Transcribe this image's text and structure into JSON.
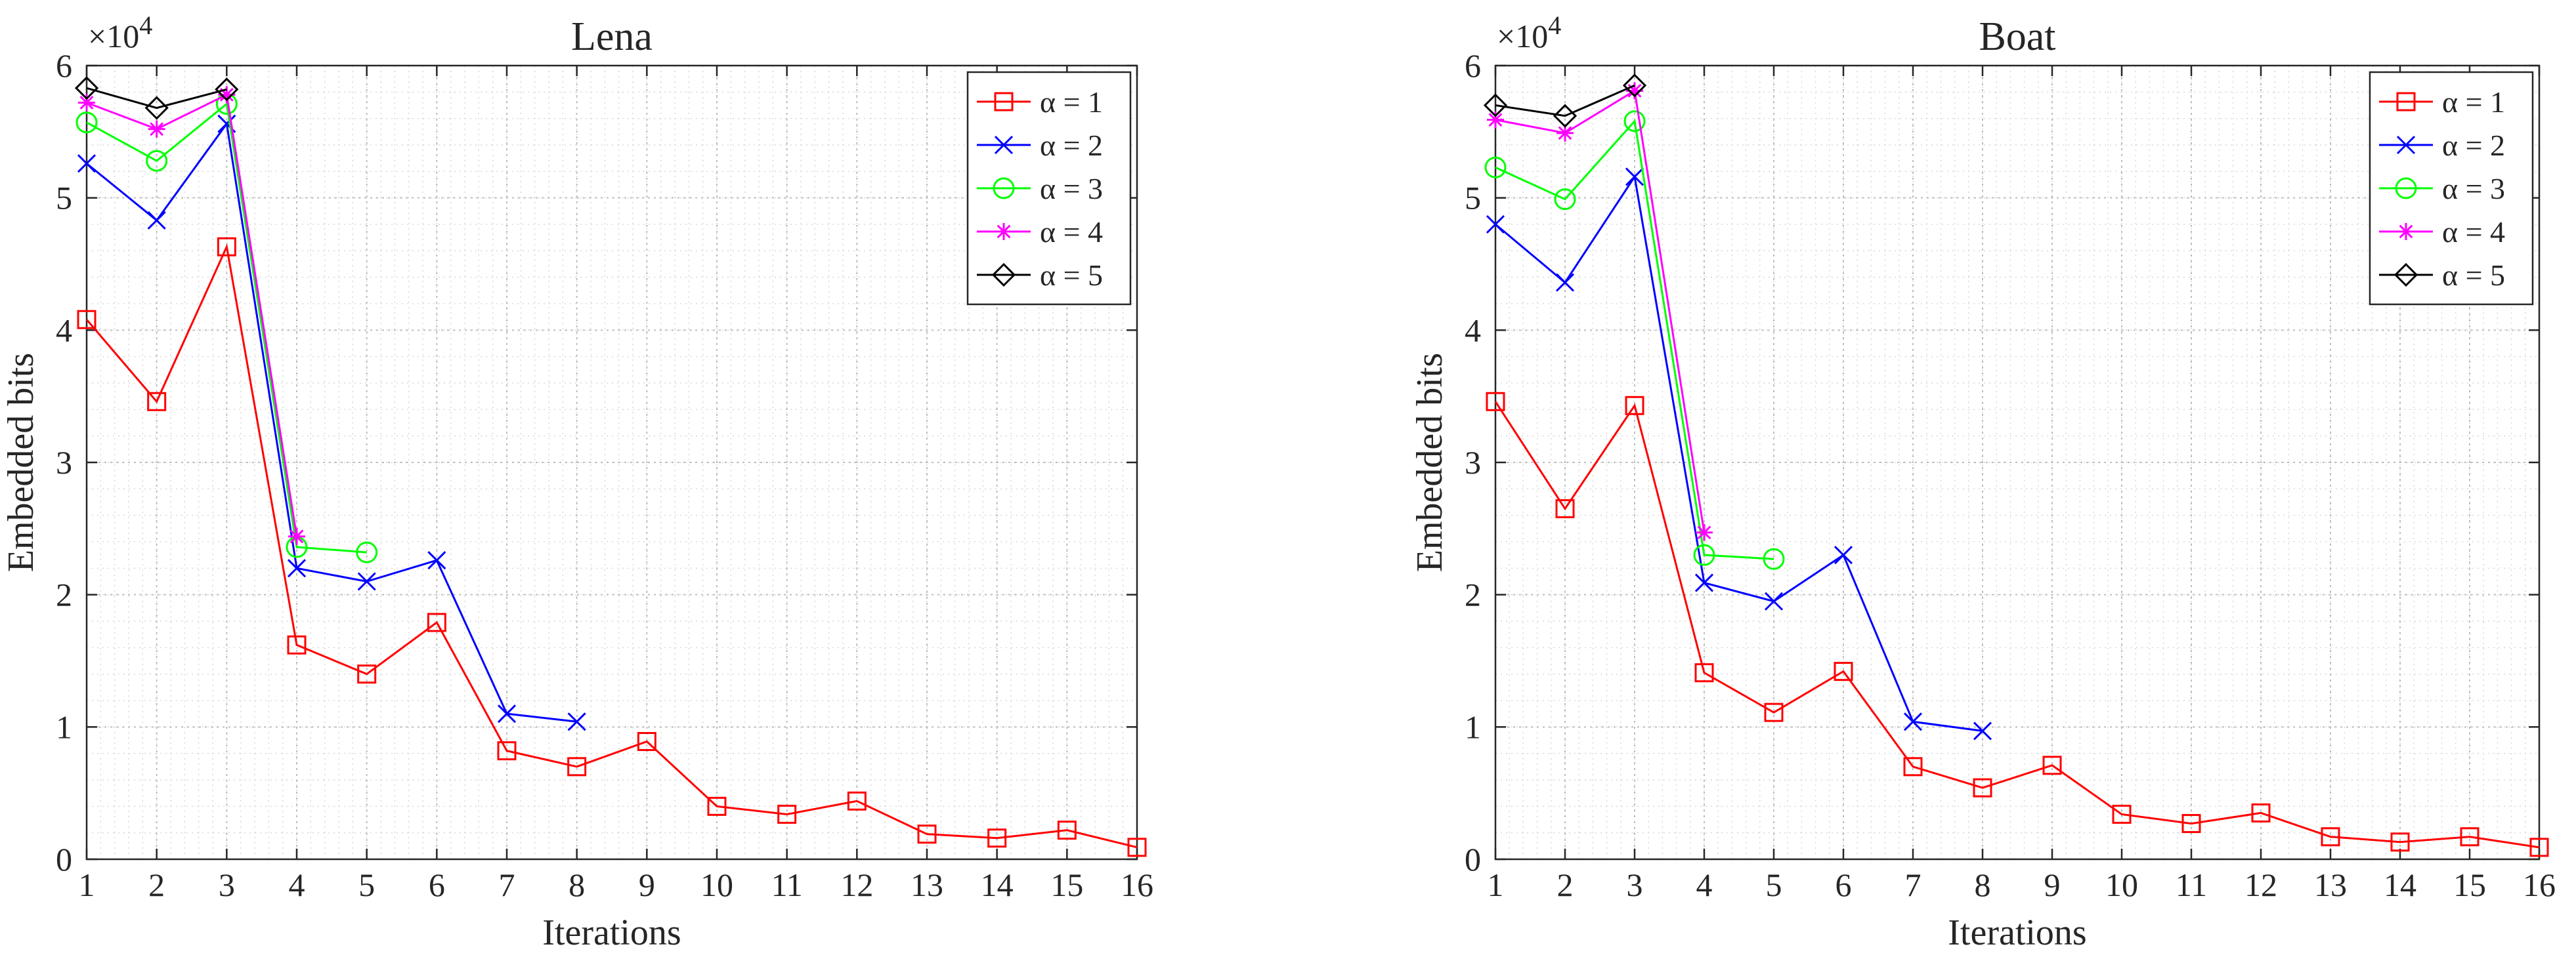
{
  "chart_data": [
    {
      "type": "line",
      "title": "Lena",
      "xlabel": "Iterations",
      "ylabel": "Embedded bits",
      "exponent_label": "×10",
      "exponent_power": "4",
      "xlim": [
        1,
        16
      ],
      "ylim": [
        0,
        6
      ],
      "xticks": [
        1,
        2,
        3,
        4,
        5,
        6,
        7,
        8,
        9,
        10,
        11,
        12,
        13,
        14,
        15,
        16
      ],
      "yticks": [
        0,
        1,
        2,
        3,
        4,
        5,
        6
      ],
      "grid": true,
      "legend_position": "top-right",
      "series": [
        {
          "name": "α = 1",
          "color": "#ff0000",
          "marker": "square",
          "x": [
            1,
            2,
            3,
            4,
            5,
            6,
            7,
            8,
            9,
            10,
            11,
            12,
            13,
            14,
            15,
            16
          ],
          "values": [
            4.08,
            3.46,
            4.63,
            1.62,
            1.4,
            1.79,
            0.82,
            0.7,
            0.89,
            0.4,
            0.34,
            0.44,
            0.19,
            0.16,
            0.22,
            0.09
          ]
        },
        {
          "name": "α = 2",
          "color": "#0000ff",
          "marker": "x",
          "x": [
            1,
            2,
            3,
            4,
            5,
            6,
            7,
            8
          ],
          "values": [
            5.26,
            4.83,
            5.56,
            2.2,
            2.1,
            2.26,
            1.1,
            1.04
          ]
        },
        {
          "name": "α = 3",
          "color": "#00ff00",
          "marker": "circle",
          "x": [
            1,
            2,
            3,
            4,
            5
          ],
          "values": [
            5.57,
            5.28,
            5.71,
            2.36,
            2.32
          ]
        },
        {
          "name": "α = 4",
          "color": "#ff00ff",
          "marker": "star",
          "x": [
            1,
            2,
            3,
            4
          ],
          "values": [
            5.72,
            5.52,
            5.78,
            2.44
          ]
        },
        {
          "name": "α = 5",
          "color": "#000000",
          "marker": "diamond",
          "x": [
            1,
            2,
            3
          ],
          "values": [
            5.83,
            5.68,
            5.82
          ]
        }
      ]
    },
    {
      "type": "line",
      "title": "Boat",
      "xlabel": "Iterations",
      "ylabel": "Embedded bits",
      "exponent_label": "×10",
      "exponent_power": "4",
      "xlim": [
        1,
        16
      ],
      "ylim": [
        0,
        6
      ],
      "xticks": [
        1,
        2,
        3,
        4,
        5,
        6,
        7,
        8,
        9,
        10,
        11,
        12,
        13,
        14,
        15,
        16
      ],
      "yticks": [
        0,
        1,
        2,
        3,
        4,
        5,
        6
      ],
      "grid": true,
      "legend_position": "top-right",
      "series": [
        {
          "name": "α = 1",
          "color": "#ff0000",
          "marker": "square",
          "x": [
            1,
            2,
            3,
            4,
            5,
            6,
            7,
            8,
            9,
            10,
            11,
            12,
            13,
            14,
            15,
            16
          ],
          "values": [
            3.46,
            2.65,
            3.43,
            1.41,
            1.11,
            1.42,
            0.7,
            0.54,
            0.71,
            0.34,
            0.27,
            0.35,
            0.17,
            0.13,
            0.17,
            0.09
          ]
        },
        {
          "name": "α = 2",
          "color": "#0000ff",
          "marker": "x",
          "x": [
            1,
            2,
            3,
            4,
            5,
            6,
            7,
            8
          ],
          "values": [
            4.8,
            4.36,
            5.16,
            2.09,
            1.95,
            2.3,
            1.04,
            0.97
          ]
        },
        {
          "name": "α = 3",
          "color": "#00ff00",
          "marker": "circle",
          "x": [
            1,
            2,
            3,
            4,
            5
          ],
          "values": [
            5.23,
            4.99,
            5.58,
            2.3,
            2.27
          ]
        },
        {
          "name": "α = 4",
          "color": "#ff00ff",
          "marker": "star",
          "x": [
            1,
            2,
            3,
            4
          ],
          "values": [
            5.59,
            5.49,
            5.81,
            2.47
          ]
        },
        {
          "name": "α = 5",
          "color": "#000000",
          "marker": "diamond",
          "x": [
            1,
            2,
            3
          ],
          "values": [
            5.7,
            5.62,
            5.85
          ]
        }
      ]
    }
  ]
}
